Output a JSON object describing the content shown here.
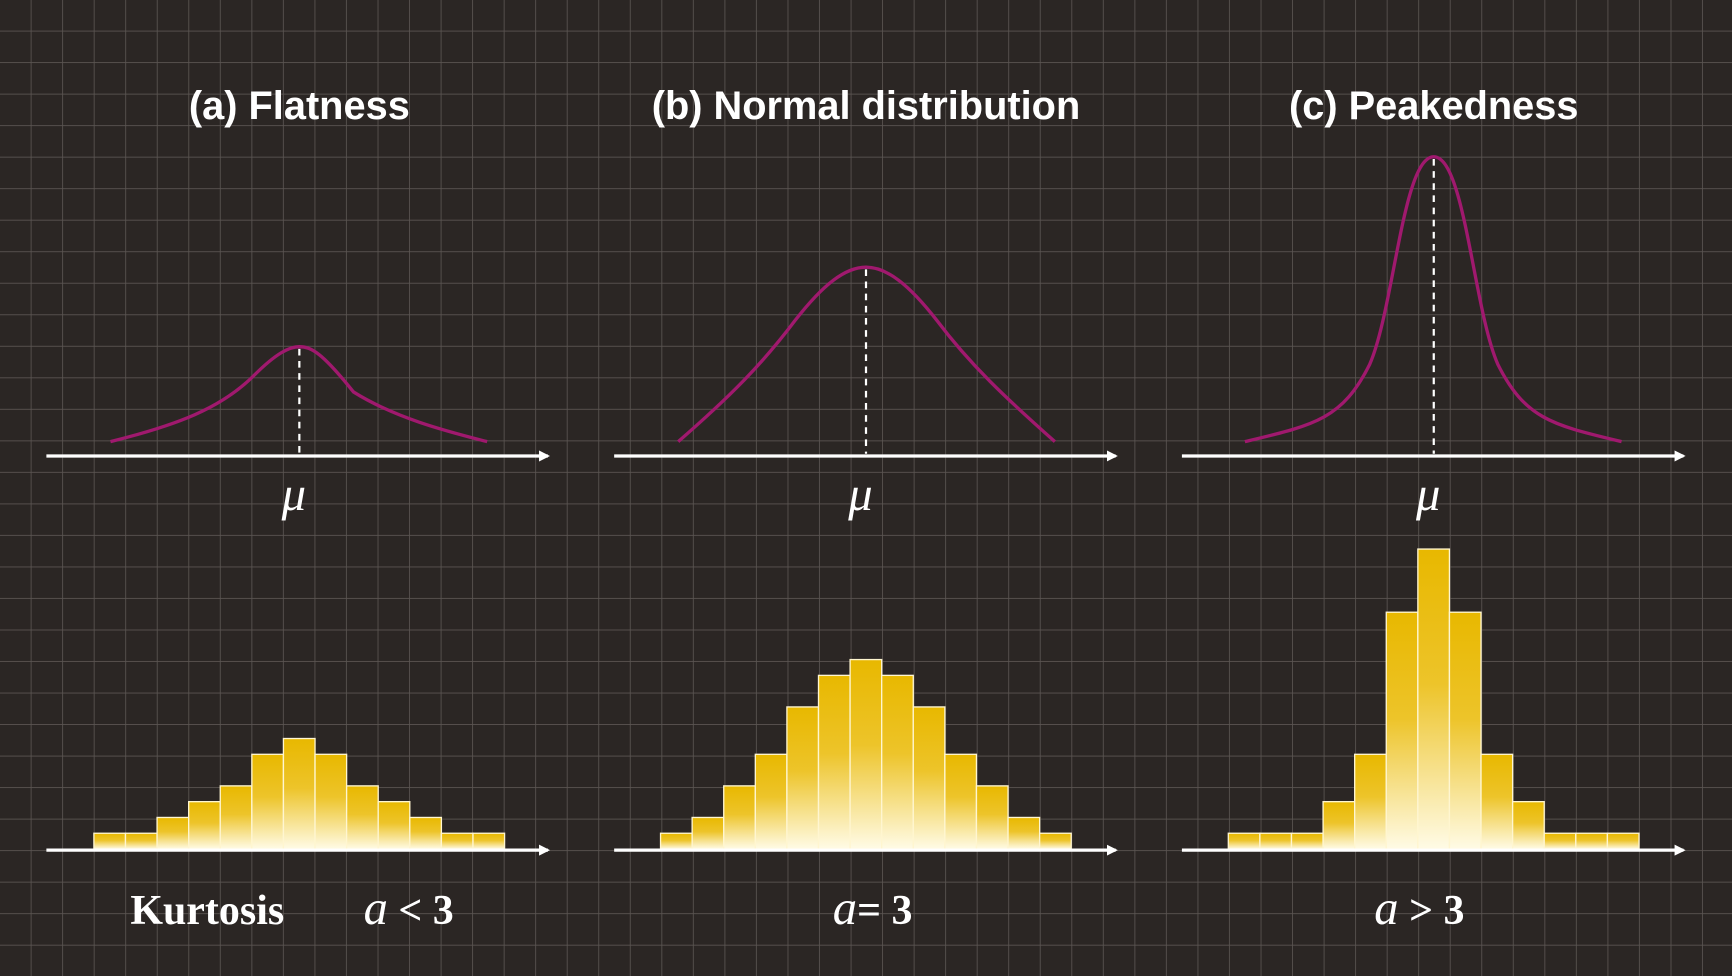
{
  "panels": [
    {
      "title": "(a) Flatness",
      "mu": "μ",
      "variable": "a",
      "relation": "< 3",
      "bars": [
        1,
        1,
        2,
        3,
        4,
        6,
        7,
        6,
        4,
        3,
        2,
        1,
        1
      ]
    },
    {
      "title": "(b) Normal distribution",
      "mu": "μ",
      "variable": "a",
      "relation": "= 3",
      "bars": [
        1,
        2,
        4,
        6,
        9,
        11,
        12,
        11,
        9,
        6,
        4,
        2,
        1
      ]
    },
    {
      "title": "(c) Peakedness",
      "mu": "μ",
      "variable": "a",
      "relation": "> 3",
      "bars": [
        1,
        1,
        1,
        3,
        6,
        15,
        19,
        15,
        6,
        3,
        1,
        1,
        1
      ]
    }
  ],
  "kurtosis_label": "Kurtosis"
}
